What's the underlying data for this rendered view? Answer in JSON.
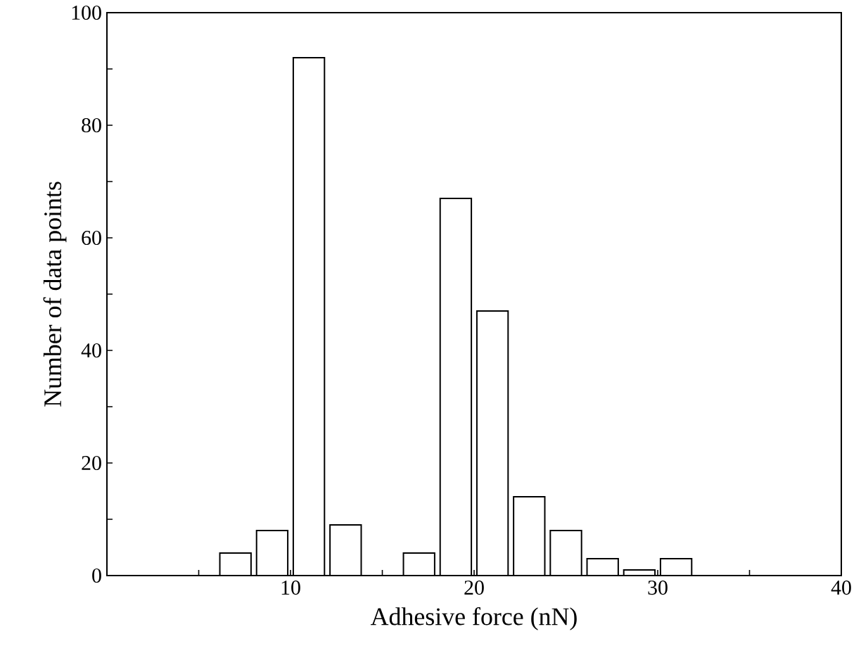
{
  "chart_data": {
    "type": "histogram",
    "xlabel": "Adhesive force (nN)",
    "ylabel": "Number of data points",
    "bins": [
      6,
      8,
      10,
      12,
      14,
      16,
      18,
      20,
      22,
      24,
      26,
      28,
      30,
      32
    ],
    "values": [
      4,
      8,
      92,
      9,
      0,
      4,
      67,
      47,
      14,
      8,
      3,
      1,
      3
    ],
    "color": "#ffffff",
    "xlim": [
      0,
      40
    ],
    "ylim": [
      0,
      100
    ],
    "xticks": [
      {
        "value": 5,
        "label": null
      },
      10,
      {
        "value": 15,
        "label": null
      },
      20,
      {
        "value": 25,
        "label": null
      },
      30,
      {
        "value": 35,
        "label": null
      },
      40
    ],
    "yticks": [
      0,
      {
        "value": 10,
        "label": null
      },
      20,
      {
        "value": 30,
        "label": null
      },
      40,
      {
        "value": 50,
        "label": null
      },
      60,
      {
        "value": 70,
        "label": null
      },
      80,
      {
        "value": 90,
        "label": null
      },
      100
    ],
    "grid": false
  }
}
